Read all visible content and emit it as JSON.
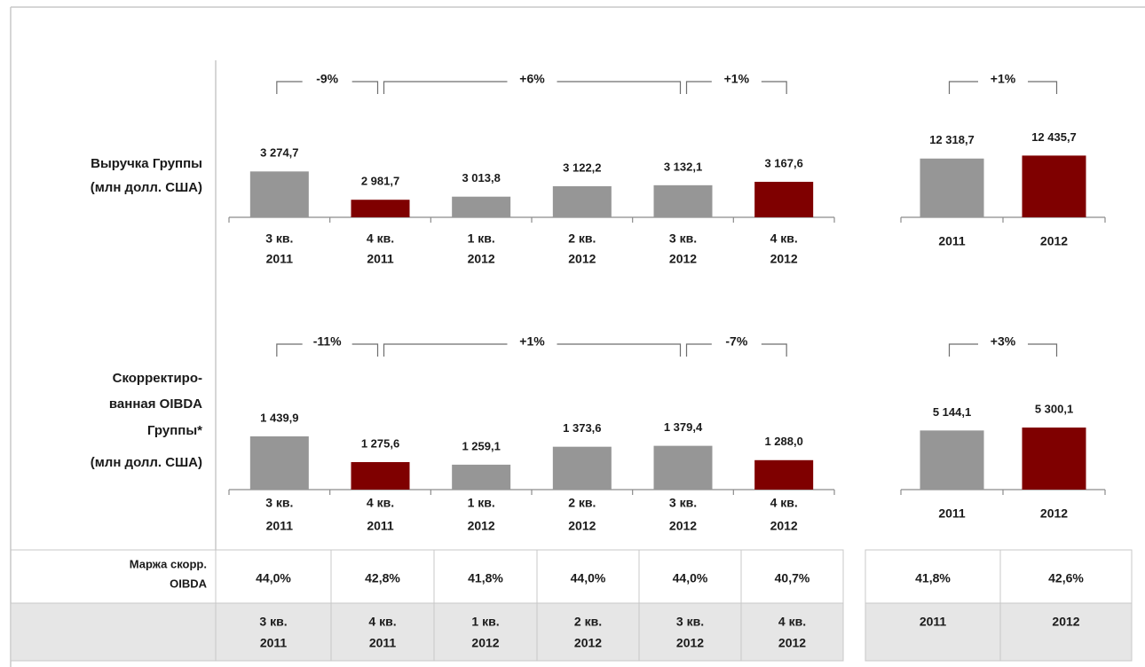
{
  "chart_data": [
    {
      "type": "bar",
      "title": [
        "Выручка Группы",
        "(млн долл. США)"
      ],
      "categories": [
        [
          "3 кв.",
          "2011"
        ],
        [
          "4 кв.",
          "2011"
        ],
        [
          "1 кв.",
          "2012"
        ],
        [
          "2 кв.",
          "2012"
        ],
        [
          "3 кв.",
          "2012"
        ],
        [
          "4 кв.",
          "2012"
        ]
      ],
      "values": [
        3274.7,
        2981.7,
        3013.8,
        3122.2,
        3132.1,
        3167.6
      ],
      "value_labels": [
        "3 274,7",
        "2 981,7",
        "3 013,8",
        "3 122,2",
        "3 132,1",
        "3 167,6"
      ],
      "colors": [
        "#969696",
        "#7f0000",
        "#969696",
        "#969696",
        "#969696",
        "#7f0000"
      ],
      "ylim": [
        2800,
        3700
      ],
      "annotations": [
        "-9%",
        "+6%",
        "+1%"
      ]
    },
    {
      "type": "bar",
      "categories": [
        "2011",
        "2012"
      ],
      "values": [
        12318.7,
        12435.7
      ],
      "value_labels": [
        "12 318,7",
        "12 435,7"
      ],
      "colors": [
        "#969696",
        "#7f0000"
      ],
      "ylim": [
        10000,
        13500
      ],
      "annotations": [
        "+1%"
      ]
    },
    {
      "type": "bar",
      "title": [
        "Скорректиро-",
        "ванная OIBDA",
        "Группы*",
        "(млн долл. США)"
      ],
      "categories": [
        [
          "3 кв.",
          "2011"
        ],
        [
          "4 кв.",
          "2011"
        ],
        [
          "1 кв.",
          "2012"
        ],
        [
          "2 кв.",
          "2012"
        ],
        [
          "3 кв.",
          "2012"
        ],
        [
          "4 кв.",
          "2012"
        ]
      ],
      "values": [
        1439.9,
        1275.6,
        1259.1,
        1373.6,
        1379.4,
        1288.0
      ],
      "value_labels": [
        "1 439,9",
        "1 275,6",
        "1 259,1",
        "1 373,6",
        "1 379,4",
        "1 288,0"
      ],
      "colors": [
        "#969696",
        "#7f0000",
        "#969696",
        "#969696",
        "#969696",
        "#7f0000"
      ],
      "ylim": [
        1100,
        1700
      ],
      "annotations": [
        "-11%",
        "+1%",
        "-7%"
      ]
    },
    {
      "type": "bar",
      "categories": [
        "2011",
        "2012"
      ],
      "values": [
        5144.1,
        5300.1
      ],
      "value_labels": [
        "5 144,1",
        "5 300,1"
      ],
      "colors": [
        "#969696",
        "#7f0000"
      ],
      "ylim": [
        2000,
        7000
      ],
      "annotations": [
        "+3%"
      ]
    }
  ],
  "table": {
    "row_label": [
      "Маржа скорр.",
      "OIBDA"
    ],
    "values": [
      "44,0%",
      "42,8%",
      "41,8%",
      "44,0%",
      "44,0%",
      "40,7%"
    ],
    "value_colors": [
      "#1a1a1a",
      "#a0203a",
      "#1a1a1a",
      "#1a1a1a",
      "#1a1a1a",
      "#a0203a"
    ],
    "categories": [
      [
        "3 кв.",
        "2011"
      ],
      [
        "4 кв.",
        "2011"
      ],
      [
        "1 кв.",
        "2012"
      ],
      [
        "2 кв.",
        "2012"
      ],
      [
        "3 кв.",
        "2012"
      ],
      [
        "4 кв.",
        "2012"
      ]
    ],
    "annual_values": [
      "41,8%",
      "42,6%"
    ],
    "annual_value_colors": [
      "#1a1a1a",
      "#a0203a"
    ],
    "annual_categories": [
      "2011",
      "2012"
    ]
  }
}
